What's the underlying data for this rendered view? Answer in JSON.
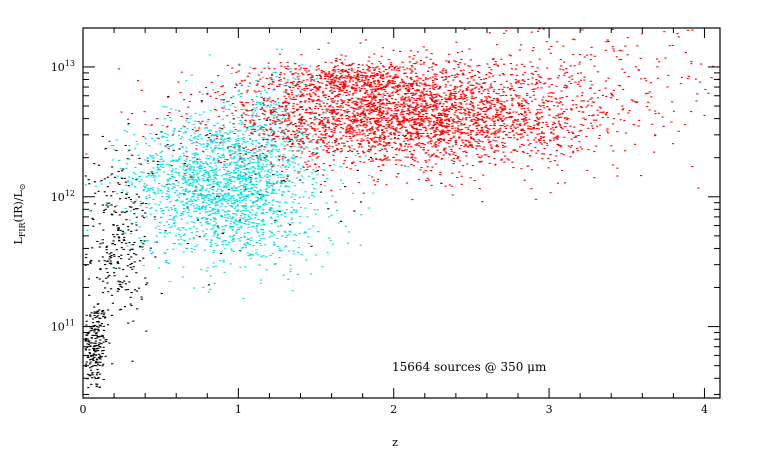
{
  "chart_data": {
    "type": "scatter",
    "title": "",
    "xlabel": "z",
    "ylabel": "L_FIR(IR)/L_⊙",
    "ylabel_main": "L",
    "ylabel_sub": "FIR",
    "ylabel_rest": "(IR)/L",
    "ylabel_sub2": "⊙",
    "xlim": [
      0,
      4.1
    ],
    "ylim_log10": [
      10.45,
      13.3
    ],
    "yscale": "log",
    "grid": false,
    "x_ticks": [
      0,
      1,
      2,
      3,
      4
    ],
    "x_tick_labels": [
      "0",
      "1",
      "2",
      "3",
      "4"
    ],
    "y_ticks_log10": [
      11,
      12,
      13
    ],
    "y_tick_label_base": "10",
    "y_tick_label_exps": [
      "11",
      "12",
      "13"
    ],
    "annotation": "15664 sources @ 350 μm",
    "colors": {
      "low_z": "#000000",
      "mid_z": "#00e0e0",
      "high_z": "#ff0000"
    },
    "series": [
      {
        "color": "#000000",
        "clusters": [
          {
            "x_mean": 0.07,
            "x_sd": 0.04,
            "logL_mean": 10.85,
            "logL_sd": 0.18,
            "n": 220
          },
          {
            "x_mean": 0.22,
            "x_sd": 0.1,
            "logL_mean": 11.6,
            "logL_sd": 0.3,
            "n": 260
          },
          {
            "x_mean": 0.8,
            "x_sd": 0.5,
            "logL_mean": 12.15,
            "logL_sd": 0.3,
            "n": 120
          }
        ]
      },
      {
        "color": "#00e0e0",
        "clusters": [
          {
            "x_mean": 0.85,
            "x_sd": 0.28,
            "logL_mean": 12.15,
            "logL_sd": 0.22,
            "n": 1300
          },
          {
            "x_mean": 1.0,
            "x_sd": 0.3,
            "logL_mean": 11.8,
            "logL_sd": 0.2,
            "n": 500
          },
          {
            "x_mean": 1.2,
            "x_sd": 0.25,
            "logL_mean": 12.5,
            "logL_sd": 0.25,
            "n": 400
          }
        ]
      },
      {
        "color": "#ff0000",
        "clusters": [
          {
            "x_mean": 2.0,
            "x_sd": 0.55,
            "logL_mean": 12.6,
            "logL_sd": 0.18,
            "n": 2600
          },
          {
            "x_mean": 1.7,
            "x_sd": 0.3,
            "logL_mean": 12.9,
            "logL_sd": 0.08,
            "n": 500
          },
          {
            "x_mean": 2.6,
            "x_sd": 0.5,
            "logL_mean": 12.7,
            "logL_sd": 0.22,
            "n": 700
          },
          {
            "x_mean": 3.4,
            "x_sd": 0.45,
            "logL_mean": 12.9,
            "logL_sd": 0.28,
            "n": 200
          }
        ]
      }
    ]
  }
}
